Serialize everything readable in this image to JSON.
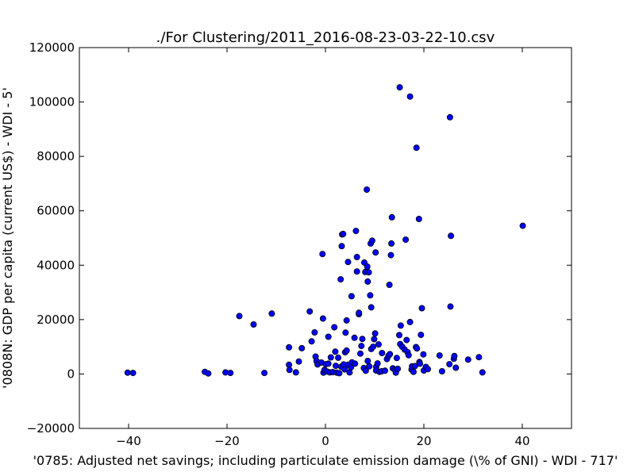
{
  "chart_data": {
    "type": "scatter",
    "title": "./For Clustering/2011_2016-08-23-03-22-10.csv",
    "xlabel": "'0785: Adjusted net savings; including particulate emission damage  (\\% of GNI) - WDI - 717'",
    "ylabel": "'0808N: GDP per capita  (current US$) - WDI - 5'",
    "xlim": [
      -50,
      50
    ],
    "ylim": [
      -20000,
      120000
    ],
    "xticks": [
      -40,
      -20,
      0,
      20,
      40
    ],
    "yticks": [
      -20000,
      0,
      20000,
      40000,
      60000,
      80000,
      100000,
      120000
    ],
    "x_tick_labels": [
      "−40",
      "−20",
      "0",
      "20",
      "40"
    ],
    "y_tick_labels": [
      "−20000",
      "0",
      "20000",
      "40000",
      "60000",
      "80000",
      "100000",
      "120000"
    ],
    "grid": false,
    "marker_color": "#0000ff",
    "marker_edge": "#000000",
    "points": [
      [
        -40.2,
        500
      ],
      [
        -39.1,
        400
      ],
      [
        -24.5,
        800
      ],
      [
        -23.8,
        200
      ],
      [
        -20.3,
        600
      ],
      [
        -19.3,
        400
      ],
      [
        -17.5,
        21300
      ],
      [
        -14.6,
        18200
      ],
      [
        -12.4,
        400
      ],
      [
        -10.9,
        22200
      ],
      [
        -7.4,
        9800
      ],
      [
        -7.4,
        3400
      ],
      [
        -7.3,
        1500
      ],
      [
        -6.0,
        600
      ],
      [
        -5.4,
        4600
      ],
      [
        -4.8,
        9500
      ],
      [
        -3.2,
        23000
      ],
      [
        -2.8,
        12000
      ],
      [
        -2.2,
        15300
      ],
      [
        -2.0,
        6400
      ],
      [
        -1.8,
        4800
      ],
      [
        -1.6,
        3500
      ],
      [
        -0.8,
        4200
      ],
      [
        -0.6,
        44100
      ],
      [
        -0.5,
        20400
      ],
      [
        -0.4,
        500
      ],
      [
        -0.2,
        1500
      ],
      [
        0.1,
        3600
      ],
      [
        0.3,
        900
      ],
      [
        0.6,
        3800
      ],
      [
        0.6,
        13700
      ],
      [
        0.9,
        600
      ],
      [
        1.1,
        6100
      ],
      [
        1.5,
        700
      ],
      [
        1.8,
        17200
      ],
      [
        2.0,
        8200
      ],
      [
        2.1,
        3000
      ],
      [
        2.3,
        500
      ],
      [
        2.6,
        6000
      ],
      [
        2.8,
        300
      ],
      [
        3.1,
        34800
      ],
      [
        3.2,
        2700
      ],
      [
        3.3,
        47000
      ],
      [
        3.4,
        51300
      ],
      [
        3.6,
        51500
      ],
      [
        3.7,
        3500
      ],
      [
        3.9,
        1700
      ],
      [
        4.0,
        8000
      ],
      [
        4.1,
        15200
      ],
      [
        4.3,
        8600
      ],
      [
        4.3,
        19700
      ],
      [
        4.6,
        3400
      ],
      [
        4.6,
        41200
      ],
      [
        4.9,
        600
      ],
      [
        5.2,
        2500
      ],
      [
        5.3,
        28600
      ],
      [
        5.4,
        4300
      ],
      [
        5.9,
        13300
      ],
      [
        6.0,
        3800
      ],
      [
        6.2,
        52600
      ],
      [
        6.4,
        43000
      ],
      [
        6.4,
        37700
      ],
      [
        6.8,
        22000
      ],
      [
        6.8,
        22500
      ],
      [
        7.1,
        7500
      ],
      [
        7.3,
        10300
      ],
      [
        7.5,
        12900
      ],
      [
        7.8,
        2200
      ],
      [
        7.9,
        41000
      ],
      [
        8.1,
        37500
      ],
      [
        8.2,
        1200
      ],
      [
        8.4,
        67800
      ],
      [
        8.5,
        39500
      ],
      [
        8.6,
        4800
      ],
      [
        8.6,
        34000
      ],
      [
        8.8,
        37400
      ],
      [
        8.9,
        2800
      ],
      [
        9.1,
        28900
      ],
      [
        9.2,
        48000
      ],
      [
        9.3,
        9200
      ],
      [
        9.3,
        24500
      ],
      [
        9.5,
        49000
      ],
      [
        9.7,
        10000
      ],
      [
        9.9,
        12800
      ],
      [
        10.1,
        14900
      ],
      [
        10.2,
        44700
      ],
      [
        10.3,
        2600
      ],
      [
        10.3,
        1300
      ],
      [
        10.6,
        3900
      ],
      [
        10.8,
        10900
      ],
      [
        11.0,
        800
      ],
      [
        11.4,
        1000
      ],
      [
        11.5,
        7700
      ],
      [
        12.1,
        1200
      ],
      [
        12.5,
        5500
      ],
      [
        12.8,
        6700
      ],
      [
        13.0,
        32800
      ],
      [
        13.1,
        7300
      ],
      [
        13.3,
        43700
      ],
      [
        13.4,
        48000
      ],
      [
        13.5,
        57600
      ],
      [
        13.7,
        2100
      ],
      [
        14.1,
        1600
      ],
      [
        14.3,
        500
      ],
      [
        14.5,
        5900
      ],
      [
        14.7,
        1900
      ],
      [
        15.0,
        14300
      ],
      [
        15.1,
        105400
      ],
      [
        15.2,
        11000
      ],
      [
        15.3,
        17800
      ],
      [
        15.6,
        10000
      ],
      [
        16.1,
        9000
      ],
      [
        16.3,
        49400
      ],
      [
        16.5,
        12500
      ],
      [
        16.7,
        8000
      ],
      [
        16.9,
        6900
      ],
      [
        17.2,
        19100
      ],
      [
        17.2,
        102000
      ],
      [
        17.5,
        1600
      ],
      [
        17.6,
        2800
      ],
      [
        17.9,
        800
      ],
      [
        18.2,
        2900
      ],
      [
        18.4,
        9900
      ],
      [
        18.5,
        83200
      ],
      [
        18.6,
        9400
      ],
      [
        19.0,
        57000
      ],
      [
        19.1,
        4400
      ],
      [
        19.2,
        3800
      ],
      [
        19.4,
        14400
      ],
      [
        19.6,
        24200
      ],
      [
        19.9,
        7200
      ],
      [
        20.0,
        1300
      ],
      [
        20.4,
        2600
      ],
      [
        20.8,
        1800
      ],
      [
        23.2,
        6800
      ],
      [
        23.7,
        1000
      ],
      [
        25.2,
        3600
      ],
      [
        25.3,
        94400
      ],
      [
        25.4,
        24800
      ],
      [
        25.5,
        50800
      ],
      [
        26.1,
        5600
      ],
      [
        26.2,
        6600
      ],
      [
        26.5,
        2300
      ],
      [
        29.0,
        5300
      ],
      [
        31.2,
        6200
      ],
      [
        31.9,
        600
      ],
      [
        40.1,
        54500
      ]
    ]
  }
}
